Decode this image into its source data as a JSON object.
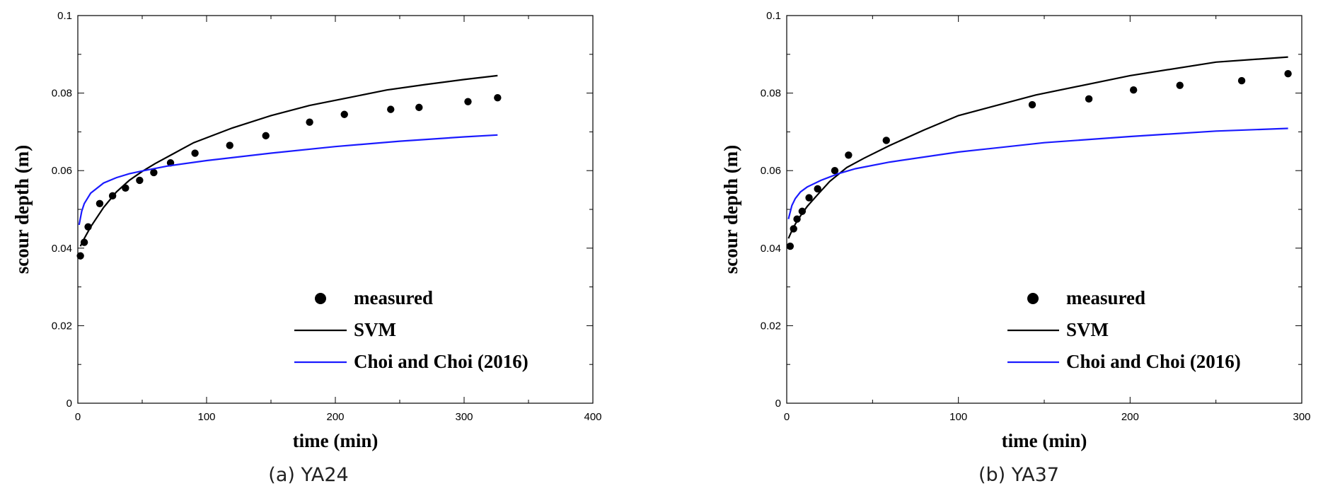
{
  "chart_data": [
    {
      "type": "scatter",
      "caption": "(a) YA24",
      "xlabel": "time (min)",
      "ylabel": "scour depth (m)",
      "xlim": [
        0,
        400
      ],
      "ylim": [
        0,
        0.1
      ],
      "x_ticks": [
        0,
        100,
        200,
        300,
        400
      ],
      "x_tick_labels": [
        "0",
        "100",
        "200",
        "300",
        "400"
      ],
      "y_ticks": [
        0,
        0.02,
        0.04,
        0.06,
        0.08,
        0.1
      ],
      "y_tick_labels": [
        "0",
        "0.02",
        "0.04",
        "0.06",
        "0.08",
        "0.1"
      ],
      "grid": false,
      "legend_position": "bottom-right",
      "series": [
        {
          "name": "measured",
          "kind": "points",
          "color": "#000000",
          "x": [
            2,
            5,
            8,
            17,
            27,
            37,
            48,
            59,
            72,
            91,
            118,
            146,
            180,
            207,
            243,
            265,
            303,
            326
          ],
          "y": [
            0.038,
            0.0415,
            0.0455,
            0.0515,
            0.0535,
            0.0555,
            0.0575,
            0.0595,
            0.062,
            0.0645,
            0.0665,
            0.069,
            0.0725,
            0.0745,
            0.0758,
            0.0763,
            0.0778,
            0.0788
          ]
        },
        {
          "name": "SVM",
          "kind": "line",
          "color": "#000000",
          "x": [
            2,
            5,
            10,
            20,
            30,
            40,
            50,
            60,
            75,
            90,
            120,
            150,
            180,
            210,
            240,
            270,
            300,
            326
          ],
          "y": [
            0.0405,
            0.0425,
            0.0455,
            0.0505,
            0.0545,
            0.0575,
            0.0598,
            0.0618,
            0.0645,
            0.0672,
            0.071,
            0.0742,
            0.0768,
            0.0788,
            0.0808,
            0.0822,
            0.0835,
            0.0845
          ]
        },
        {
          "name": "Choi and Choi (2016)",
          "kind": "line",
          "color": "#1a1aff",
          "x": [
            1,
            3,
            5,
            10,
            20,
            30,
            40,
            50,
            70,
            100,
            150,
            200,
            250,
            300,
            326
          ],
          "y": [
            0.046,
            0.0495,
            0.0515,
            0.0542,
            0.0568,
            0.0582,
            0.0592,
            0.0599,
            0.0612,
            0.0626,
            0.0645,
            0.0662,
            0.0676,
            0.0687,
            0.0692
          ]
        }
      ]
    },
    {
      "type": "scatter",
      "caption": "(b) YA37",
      "xlabel": "time (min)",
      "ylabel": "scour depth (m)",
      "xlim": [
        0,
        300
      ],
      "ylim": [
        0,
        0.1
      ],
      "x_ticks": [
        0,
        100,
        200,
        300
      ],
      "x_tick_labels": [
        "0",
        "100",
        "200",
        "300"
      ],
      "y_ticks": [
        0,
        0.02,
        0.04,
        0.06,
        0.08,
        0.1
      ],
      "y_tick_labels": [
        "0",
        "0.02",
        "0.04",
        "0.06",
        "0.08",
        "0.1"
      ],
      "grid": false,
      "legend_position": "bottom-right",
      "series": [
        {
          "name": "measured",
          "kind": "points",
          "color": "#000000",
          "x": [
            2,
            4,
            6,
            9,
            13,
            18,
            28,
            36,
            58,
            143,
            176,
            202,
            229,
            265,
            292
          ],
          "y": [
            0.0405,
            0.045,
            0.0475,
            0.0495,
            0.053,
            0.0553,
            0.06,
            0.064,
            0.0678,
            0.077,
            0.0785,
            0.0808,
            0.082,
            0.0832,
            0.085
          ]
        },
        {
          "name": "SVM",
          "kind": "line",
          "color": "#000000",
          "x": [
            1,
            3,
            5,
            8,
            12,
            18,
            25,
            35,
            45,
            60,
            80,
            100,
            145,
            200,
            250,
            292
          ],
          "y": [
            0.0425,
            0.0445,
            0.0462,
            0.0483,
            0.0508,
            0.0538,
            0.0572,
            0.0608,
            0.0632,
            0.0665,
            0.0705,
            0.0742,
            0.0795,
            0.0845,
            0.088,
            0.0893
          ]
        },
        {
          "name": "Choi and Choi (2016)",
          "kind": "line",
          "color": "#1a1aff",
          "x": [
            1,
            3,
            5,
            8,
            12,
            20,
            30,
            40,
            60,
            100,
            150,
            200,
            250,
            292
          ],
          "y": [
            0.0475,
            0.051,
            0.0528,
            0.0545,
            0.0558,
            0.0575,
            0.0592,
            0.0605,
            0.0622,
            0.0648,
            0.0672,
            0.0688,
            0.0702,
            0.0709
          ]
        }
      ]
    }
  ]
}
